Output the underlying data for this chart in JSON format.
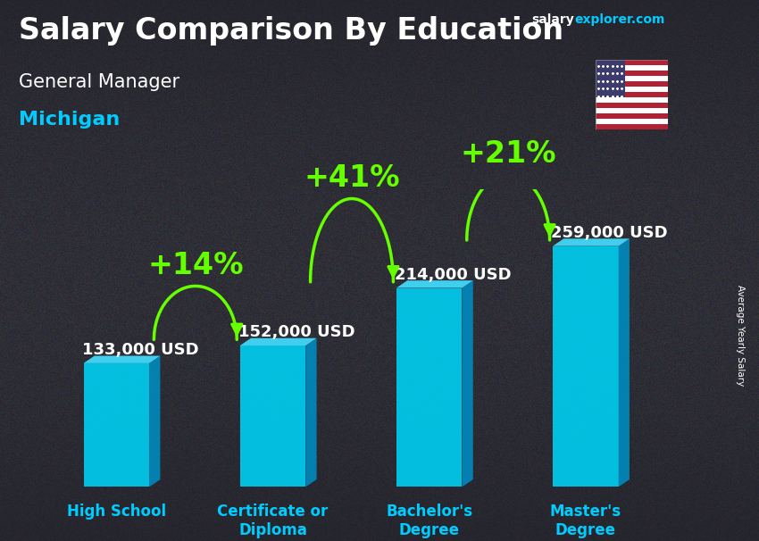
{
  "title_line1": "Salary Comparison By Education",
  "subtitle1": "General Manager",
  "subtitle2": "Michigan",
  "watermark_salary": "salary",
  "watermark_explorer": "explorer.com",
  "ylabel": "Average Yearly Salary",
  "categories": [
    "High School",
    "Certificate or\nDiploma",
    "Bachelor's\nDegree",
    "Master's\nDegree"
  ],
  "values": [
    133000,
    152000,
    214000,
    259000
  ],
  "value_labels": [
    "133,000 USD",
    "152,000 USD",
    "214,000 USD",
    "259,000 USD"
  ],
  "pct_labels": [
    "+14%",
    "+41%",
    "+21%"
  ],
  "bar_face_color": "#00ccee",
  "bar_side_color": "#0088bb",
  "bar_top_color": "#44ddff",
  "bar_edge_color": "#00aacc",
  "bg_color": "#3a3a4a",
  "text_white": "#ffffff",
  "text_cyan": "#00ccff",
  "text_green": "#66ff00",
  "arrow_color": "#66ff00",
  "bar_width": 0.42,
  "bar_depth": 0.07,
  "ylim_max": 320000,
  "title_fontsize": 24,
  "sub1_fontsize": 15,
  "sub2_fontsize": 16,
  "val_fontsize": 13,
  "pct_fontsize": 24,
  "cat_fontsize": 12
}
